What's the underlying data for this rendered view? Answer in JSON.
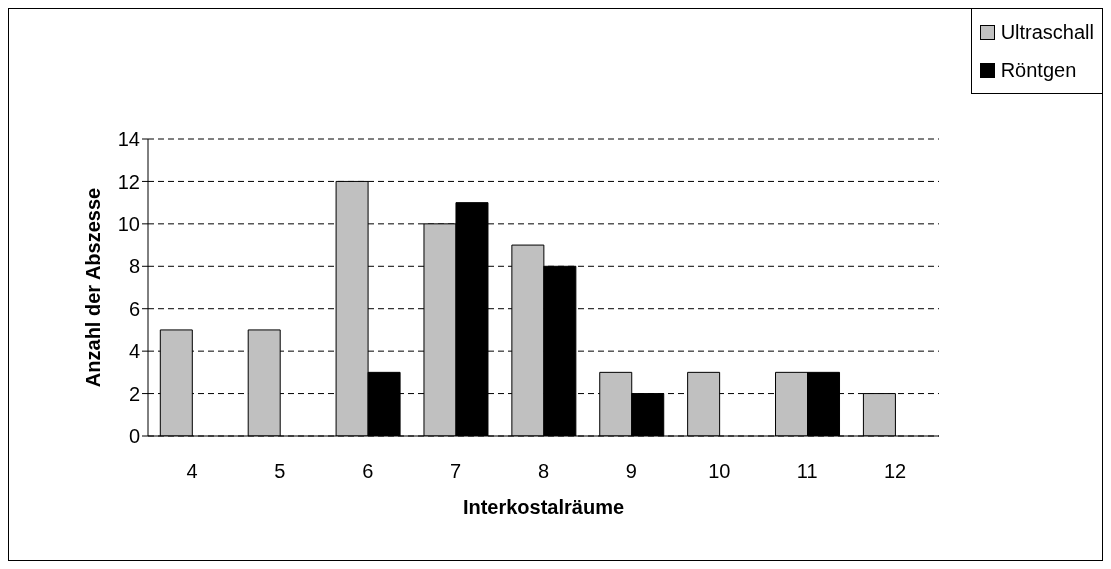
{
  "chart_data": {
    "type": "bar",
    "xlabel": "Interkostalräume",
    "ylabel": "Anzahl der Abszesse",
    "categories": [
      "4",
      "5",
      "6",
      "7",
      "8",
      "9",
      "10",
      "11",
      "12"
    ],
    "series": [
      {
        "name": "Ultraschall",
        "color": "#c0c0c0",
        "values": [
          5,
          5,
          12,
          10,
          9,
          3,
          3,
          3,
          2
        ]
      },
      {
        "name": "Röntgen",
        "color": "#000000",
        "values": [
          0,
          0,
          3,
          11,
          8,
          2,
          0,
          3,
          0
        ]
      }
    ],
    "ylim": [
      0,
      14
    ],
    "yticks": [
      0,
      2,
      4,
      6,
      8,
      10,
      12,
      14
    ],
    "grid": "y",
    "legend": "top right"
  }
}
